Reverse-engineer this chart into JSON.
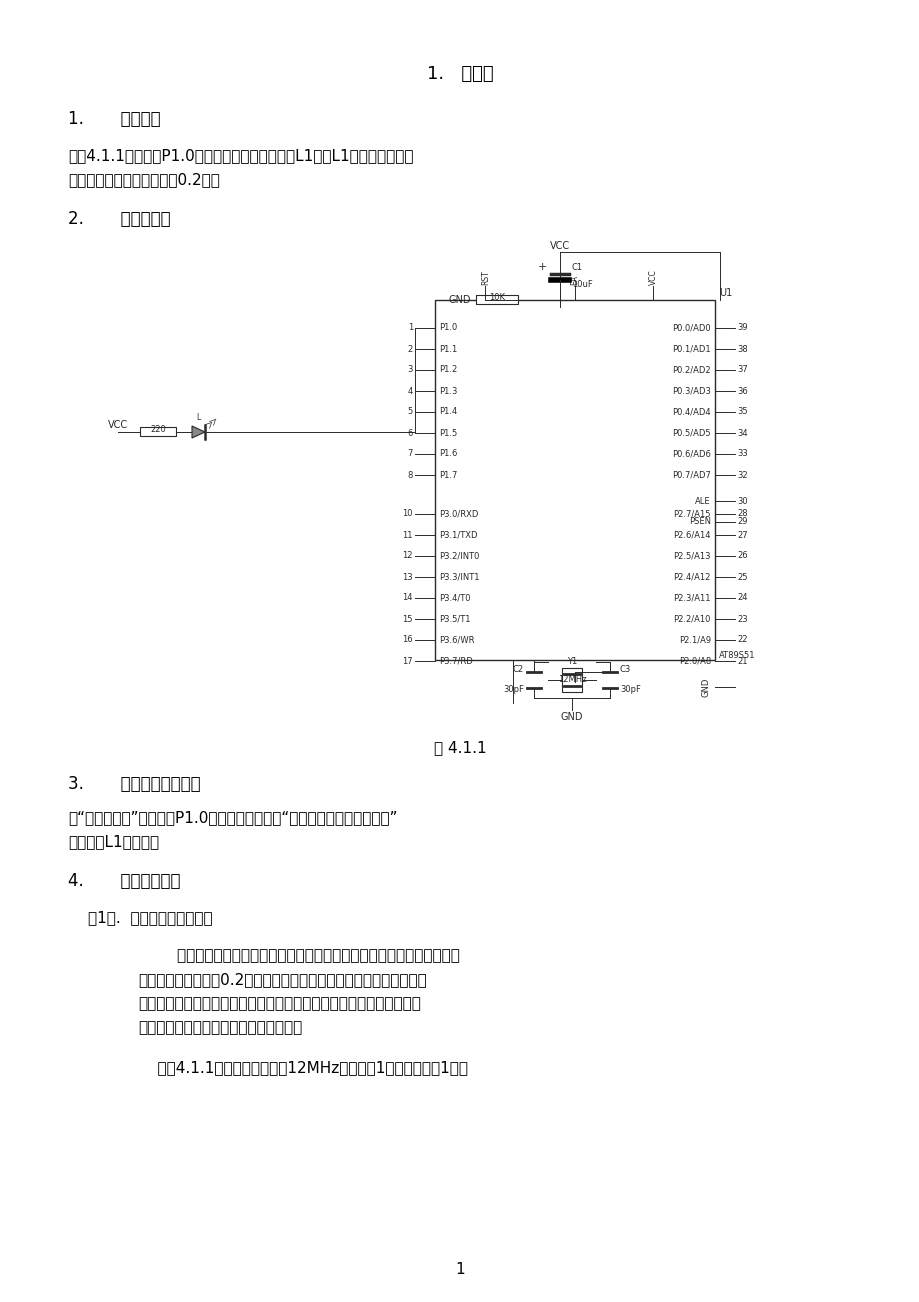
{
  "title": "1.   闪烁灯",
  "section1": "1.       实验任务",
  "section2": "2.       电路原理图",
  "fig_caption": "图 4.1.1",
  "section3": "3.       系统板上硬件连线",
  "section4": "4.       程序设计内容",
  "subsection1": "（1）.  延时程序的设计方法",
  "page_num": "1",
  "bg_color": "#ffffff",
  "text_color": "#000000",
  "para1_lines": [
    "如图4.1.1所示：在P1.0端口上接一个发光二极管L1，使L1在不停地一亮一",
    "灿，一亮一灿的时间间隔为0.2秒。"
  ],
  "para3_lines": [
    "把“单片机系统”区域中的P1.0端口用导线连接到“八路发光二极管指示模块”",
    "区域中的L1端口上。"
  ],
  "para4_lines": [
    "        作为单片机的指令的执行的时间是很短，数量大微秒级，因此，我们要",
    "求的闪烁时间间隔为0.2秒，相对于微秒来说，相差太大，所以我们在",
    "执行某一指令时，插入延时程序，来达到我们的要求，但这样的延时程",
    "序是如何设计呢？下面具体介绍其原理："
  ],
  "para5": "    如图4.1.1所示的石英晶体为12MHz，因此，1个机器周期为1微秒"
}
